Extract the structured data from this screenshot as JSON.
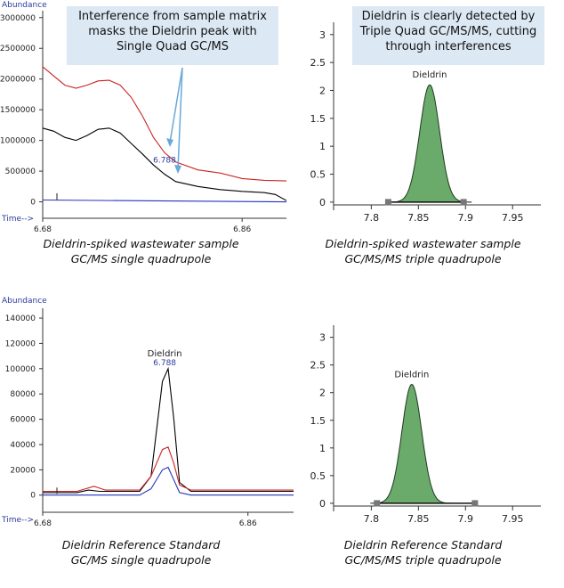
{
  "callouts": {
    "left": "Interference from sample matrix masks the Dieldrin peak with Single Quad GC/MS",
    "right": "Dieldrin is clearly detected by Triple Quad GC/MS/MS, cutting through interferences"
  },
  "captions": {
    "top_left": [
      "Dieldrin-spiked wastewater sample",
      "GC/MS single quadrupole"
    ],
    "top_right": [
      "Dieldrin-spiked wastewater sample",
      "GC/MS/MS triple quadrupole"
    ],
    "bottom_left": [
      "Dieldrin Reference Standard",
      "GC/MS single quadrupole"
    ],
    "bottom_right": [
      "Dieldrin Reference Standard",
      "GC/MS/MS triple quadrupole"
    ]
  },
  "colors": {
    "black": "#000000",
    "red": "#cc2222",
    "blue": "#2233bb",
    "peak_fill": "#6aaa6a",
    "callout_bg": "#dce8f4",
    "arrow": "#6aa8d8"
  },
  "chart_data": [
    {
      "id": "top_left",
      "type": "line",
      "ylabel": "Abundance",
      "xlabel": "Time-->",
      "x_ticks": [
        6.68,
        6.86
      ],
      "y_ticks": [
        0,
        500000,
        1000000,
        1500000,
        2000000,
        2500000,
        3000000
      ],
      "xlim": [
        6.68,
        6.9
      ],
      "ylim": [
        -50000,
        3200000
      ],
      "annotation": "6.788",
      "series": [
        {
          "color": "red",
          "points": [
            [
              6.68,
              2200000
            ],
            [
              6.69,
              2050000
            ],
            [
              6.7,
              1900000
            ],
            [
              6.71,
              1850000
            ],
            [
              6.72,
              1900000
            ],
            [
              6.73,
              1970000
            ],
            [
              6.74,
              1980000
            ],
            [
              6.75,
              1900000
            ],
            [
              6.76,
              1700000
            ],
            [
              6.77,
              1400000
            ],
            [
              6.78,
              1050000
            ],
            [
              6.79,
              800000
            ],
            [
              6.8,
              650000
            ],
            [
              6.82,
              520000
            ],
            [
              6.84,
              470000
            ],
            [
              6.86,
              380000
            ],
            [
              6.88,
              350000
            ],
            [
              6.9,
              340000
            ]
          ]
        },
        {
          "color": "black",
          "points": [
            [
              6.68,
              1200000
            ],
            [
              6.69,
              1150000
            ],
            [
              6.7,
              1050000
            ],
            [
              6.71,
              1000000
            ],
            [
              6.72,
              1080000
            ],
            [
              6.73,
              1180000
            ],
            [
              6.74,
              1200000
            ],
            [
              6.75,
              1120000
            ],
            [
              6.76,
              950000
            ],
            [
              6.77,
              780000
            ],
            [
              6.78,
              600000
            ],
            [
              6.79,
              450000
            ],
            [
              6.8,
              330000
            ],
            [
              6.82,
              250000
            ],
            [
              6.84,
              200000
            ],
            [
              6.86,
              170000
            ],
            [
              6.88,
              150000
            ],
            [
              6.89,
              120000
            ],
            [
              6.9,
              20000
            ]
          ]
        },
        {
          "color": "blue",
          "points": [
            [
              6.68,
              30000
            ],
            [
              6.9,
              0
            ]
          ]
        }
      ]
    },
    {
      "id": "top_right",
      "type": "area",
      "x_ticks": [
        7.8,
        7.85,
        7.9,
        7.95
      ],
      "y_ticks": [
        0,
        0.5,
        1,
        1.5,
        2,
        2.5,
        3
      ],
      "xlim": [
        7.76,
        7.98
      ],
      "ylim": [
        -0.05,
        3.3
      ],
      "peak": {
        "name": "Dieldrin",
        "center": 7.862,
        "height": 2.1,
        "width": 0.0105
      },
      "markers": [
        7.818,
        7.898
      ]
    },
    {
      "id": "bottom_left",
      "type": "line",
      "ylabel": "Abundance",
      "xlabel": "Time-->",
      "x_ticks": [
        6.68,
        6.86
      ],
      "y_ticks": [
        0,
        20000,
        40000,
        60000,
        80000,
        100000,
        120000,
        140000
      ],
      "xlim": [
        6.68,
        6.9
      ],
      "ylim": [
        -3000,
        152000
      ],
      "annotation_name": "Dieldrin",
      "annotation": "6.788",
      "series": [
        {
          "color": "black",
          "points": [
            [
              6.68,
              2000
            ],
            [
              6.71,
              2000
            ],
            [
              6.72,
              4000
            ],
            [
              6.73,
              3000
            ],
            [
              6.765,
              3000
            ],
            [
              6.775,
              15000
            ],
            [
              6.785,
              90000
            ],
            [
              6.79,
              100000
            ],
            [
              6.795,
              60000
            ],
            [
              6.8,
              10000
            ],
            [
              6.81,
              3000
            ],
            [
              6.9,
              3000
            ]
          ]
        },
        {
          "color": "red",
          "points": [
            [
              6.68,
              3000
            ],
            [
              6.71,
              3000
            ],
            [
              6.725,
              7000
            ],
            [
              6.735,
              4000
            ],
            [
              6.765,
              4000
            ],
            [
              6.775,
              15000
            ],
            [
              6.785,
              36000
            ],
            [
              6.79,
              38000
            ],
            [
              6.795,
              25000
            ],
            [
              6.8,
              8000
            ],
            [
              6.81,
              4000
            ],
            [
              6.9,
              4000
            ]
          ]
        },
        {
          "color": "blue",
          "points": [
            [
              6.68,
              0
            ],
            [
              6.765,
              0
            ],
            [
              6.775,
              5000
            ],
            [
              6.785,
              20000
            ],
            [
              6.79,
              22000
            ],
            [
              6.795,
              12000
            ],
            [
              6.8,
              2000
            ],
            [
              6.81,
              0
            ],
            [
              6.9,
              0
            ]
          ]
        }
      ]
    },
    {
      "id": "bottom_right",
      "type": "area",
      "x_ticks": [
        7.8,
        7.85,
        7.9,
        7.95
      ],
      "y_ticks": [
        0,
        0.5,
        1,
        1.5,
        2,
        2.5,
        3
      ],
      "xlim": [
        7.76,
        7.98
      ],
      "ylim": [
        -0.05,
        3.3
      ],
      "peak": {
        "name": "Dieldrin",
        "center": 7.843,
        "height": 2.15,
        "width": 0.0105
      },
      "markers": [
        7.806,
        7.91
      ]
    }
  ]
}
